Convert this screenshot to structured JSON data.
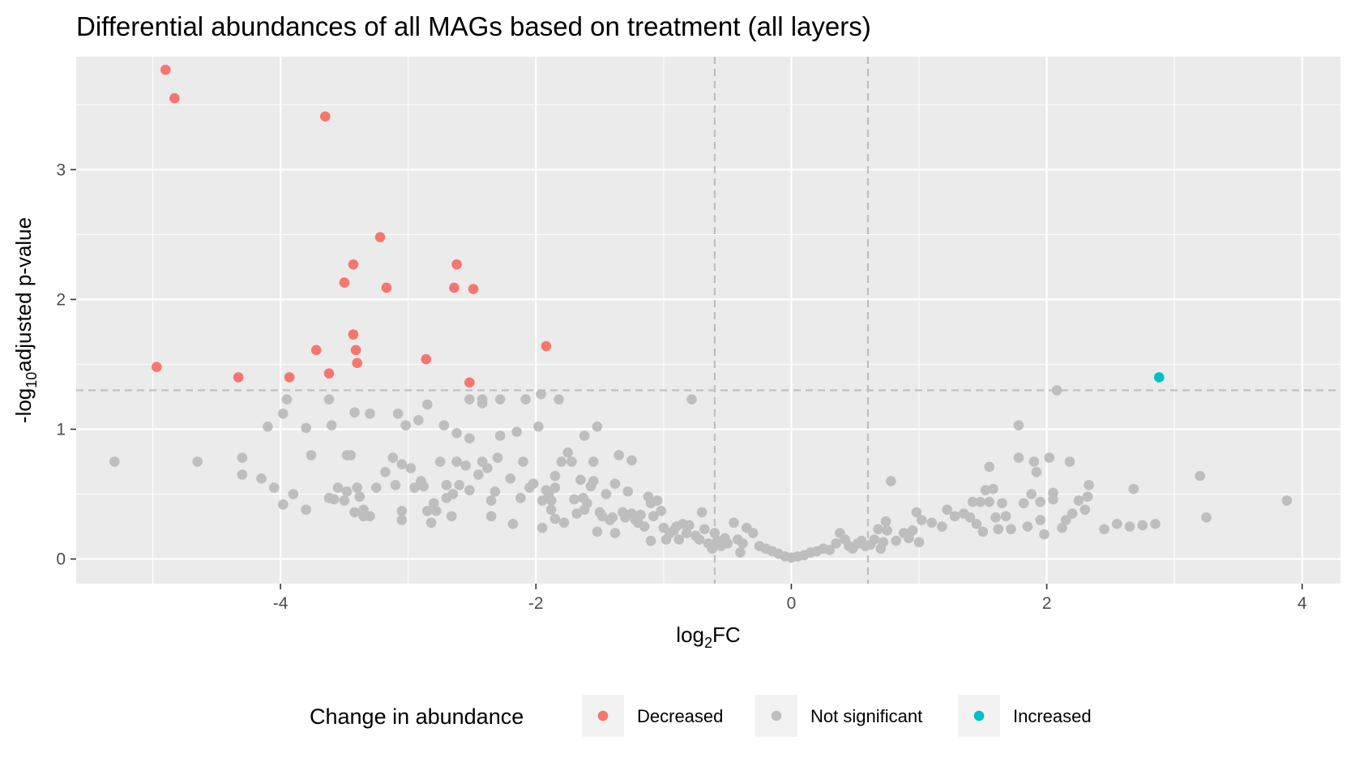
{
  "chart_data": {
    "type": "scatter",
    "title": "Differential abundances of all MAGs based on treatment (all layers)",
    "xlabel": {
      "base": "log",
      "sub": "2",
      "rest": "FC"
    },
    "ylabel": {
      "pre": "-log",
      "sub": "10",
      "rest": "adjusted p-value"
    },
    "xlim": [
      -5.6,
      4.3
    ],
    "ylim": [
      -0.19,
      3.87
    ],
    "xticks": [
      -4,
      -2,
      0,
      2,
      4
    ],
    "xtick_labels": [
      "-4",
      "-2",
      "0",
      "2",
      "4"
    ],
    "yticks": [
      0,
      1,
      2,
      3
    ],
    "ytick_labels": [
      "0",
      "1",
      "2",
      "3"
    ],
    "thresholds": {
      "x": [
        -0.6,
        0.6
      ],
      "y": 1.3
    },
    "grid": true,
    "legend": {
      "title": "Change in abundance",
      "position": "bottom",
      "entries": [
        {
          "label": "Decreased",
          "color": "#F8766D"
        },
        {
          "label": "Not significant",
          "color": "#BEBEBE"
        },
        {
          "label": "Increased",
          "color": "#00BFC4"
        }
      ]
    },
    "series": [
      {
        "name": "Decreased",
        "color": "#F8766D",
        "points": [
          [
            -4.9,
            3.77
          ],
          [
            -4.83,
            3.55
          ],
          [
            -3.65,
            3.41
          ],
          [
            -3.22,
            2.48
          ],
          [
            -3.43,
            2.27
          ],
          [
            -3.5,
            2.13
          ],
          [
            -3.17,
            2.09
          ],
          [
            -2.62,
            2.27
          ],
          [
            -2.64,
            2.09
          ],
          [
            -2.49,
            2.08
          ],
          [
            -3.43,
            1.73
          ],
          [
            -3.41,
            1.61
          ],
          [
            -3.4,
            1.51
          ],
          [
            -3.72,
            1.61
          ],
          [
            -3.62,
            1.43
          ],
          [
            -4.97,
            1.48
          ],
          [
            -4.33,
            1.4
          ],
          [
            -3.93,
            1.4
          ],
          [
            -2.86,
            1.54
          ],
          [
            -1.92,
            1.64
          ],
          [
            -2.52,
            1.36
          ]
        ]
      },
      {
        "name": "Not significant",
        "color": "#BEBEBE",
        "points": [
          [
            -5.3,
            0.75
          ],
          [
            -4.65,
            0.75
          ],
          [
            -4.3,
            0.78
          ],
          [
            -4.3,
            0.65
          ],
          [
            -4.15,
            0.62
          ],
          [
            -4.1,
            1.02
          ],
          [
            -4.05,
            0.55
          ],
          [
            -3.98,
            0.42
          ],
          [
            -3.98,
            1.12
          ],
          [
            -3.95,
            1.23
          ],
          [
            -3.9,
            0.5
          ],
          [
            -3.8,
            0.38
          ],
          [
            -3.8,
            1.01
          ],
          [
            -3.76,
            0.8
          ],
          [
            -3.62,
            1.23
          ],
          [
            -3.6,
            1.03
          ],
          [
            -3.62,
            0.47
          ],
          [
            -3.58,
            0.46
          ],
          [
            -3.55,
            0.55
          ],
          [
            -3.5,
            0.45
          ],
          [
            -3.48,
            0.8
          ],
          [
            -3.45,
            0.8
          ],
          [
            -3.48,
            0.52
          ],
          [
            -3.42,
            0.36
          ],
          [
            -3.4,
            0.55
          ],
          [
            -3.42,
            1.13
          ],
          [
            -3.38,
            0.48
          ],
          [
            -3.35,
            0.38
          ],
          [
            -3.35,
            0.33
          ],
          [
            -3.3,
            1.12
          ],
          [
            -3.3,
            0.33
          ],
          [
            -3.25,
            0.55
          ],
          [
            -3.18,
            0.67
          ],
          [
            -3.12,
            0.78
          ],
          [
            -3.1,
            0.57
          ],
          [
            -3.08,
            1.12
          ],
          [
            -3.05,
            0.73
          ],
          [
            -3.05,
            0.3
          ],
          [
            -3.05,
            0.37
          ],
          [
            -3.02,
            1.03
          ],
          [
            -2.98,
            0.7
          ],
          [
            -2.95,
            0.55
          ],
          [
            -2.92,
            1.07
          ],
          [
            -2.9,
            0.6
          ],
          [
            -2.88,
            0.56
          ],
          [
            -2.85,
            0.37
          ],
          [
            -2.85,
            1.19
          ],
          [
            -2.82,
            0.28
          ],
          [
            -2.8,
            0.43
          ],
          [
            -2.78,
            0.37
          ],
          [
            -2.75,
            0.75
          ],
          [
            -2.72,
            1.03
          ],
          [
            -2.7,
            0.47
          ],
          [
            -2.7,
            0.57
          ],
          [
            -2.66,
            0.33
          ],
          [
            -2.65,
            0.5
          ],
          [
            -2.62,
            0.97
          ],
          [
            -2.62,
            0.75
          ],
          [
            -2.6,
            0.57
          ],
          [
            -2.55,
            0.72
          ],
          [
            -2.52,
            0.53
          ],
          [
            -2.52,
            0.93
          ],
          [
            -2.52,
            1.23
          ],
          [
            -2.45,
            0.65
          ],
          [
            -2.42,
            0.75
          ],
          [
            -2.42,
            1.23
          ],
          [
            -2.42,
            1.2
          ],
          [
            -2.38,
            0.7
          ],
          [
            -2.35,
            0.45
          ],
          [
            -2.35,
            0.33
          ],
          [
            -2.32,
            0.52
          ],
          [
            -2.3,
            0.78
          ],
          [
            -2.28,
            0.95
          ],
          [
            -2.28,
            1.23
          ],
          [
            -2.2,
            0.62
          ],
          [
            -2.18,
            0.27
          ],
          [
            -2.15,
            0.98
          ],
          [
            -2.12,
            0.47
          ],
          [
            -2.1,
            0.75
          ],
          [
            -2.08,
            1.23
          ],
          [
            -2.05,
            0.55
          ],
          [
            -2.02,
            0.58
          ],
          [
            -1.98,
            1.02
          ],
          [
            -1.96,
            1.27
          ],
          [
            -1.95,
            0.45
          ],
          [
            -1.95,
            0.24
          ],
          [
            -1.92,
            0.53
          ],
          [
            -1.9,
            0.5
          ],
          [
            -1.88,
            0.45
          ],
          [
            -1.88,
            0.38
          ],
          [
            -1.85,
            0.64
          ],
          [
            -1.85,
            0.55
          ],
          [
            -1.85,
            0.31
          ],
          [
            -1.82,
            1.23
          ],
          [
            -1.8,
            0.75
          ],
          [
            -1.78,
            0.28
          ],
          [
            -1.75,
            0.82
          ],
          [
            -1.72,
            0.75
          ],
          [
            -1.7,
            0.46
          ],
          [
            -1.68,
            0.35
          ],
          [
            -1.65,
            0.61
          ],
          [
            -1.63,
            0.47
          ],
          [
            -1.62,
            0.38
          ],
          [
            -1.62,
            0.95
          ],
          [
            -1.6,
            0.43
          ],
          [
            -1.57,
            0.56
          ],
          [
            -1.55,
            0.75
          ],
          [
            -1.55,
            0.6
          ],
          [
            -1.52,
            1.02
          ],
          [
            -1.52,
            0.21
          ],
          [
            -1.5,
            0.36
          ],
          [
            -1.48,
            0.33
          ],
          [
            -1.45,
            0.5
          ],
          [
            -1.42,
            0.3
          ],
          [
            -1.4,
            0.32
          ],
          [
            -1.38,
            0.2
          ],
          [
            -1.38,
            0.58
          ],
          [
            -1.35,
            0.8
          ],
          [
            -1.32,
            0.36
          ],
          [
            -1.3,
            0.32
          ],
          [
            -1.28,
            0.52
          ],
          [
            -1.25,
            0.76
          ],
          [
            -1.25,
            0.35
          ],
          [
            -1.22,
            0.3
          ],
          [
            -1.2,
            0.28
          ],
          [
            -1.18,
            0.34
          ],
          [
            -1.15,
            0.25
          ],
          [
            -1.12,
            0.48
          ],
          [
            -1.1,
            0.43
          ],
          [
            -1.1,
            0.14
          ],
          [
            -1.08,
            0.33
          ],
          [
            -1.05,
            0.45
          ],
          [
            -1.02,
            0.37
          ],
          [
            -1.0,
            0.24
          ],
          [
            -0.98,
            0.15
          ],
          [
            -0.95,
            0.2
          ],
          [
            -0.92,
            0.22
          ],
          [
            -0.9,
            0.25
          ],
          [
            -0.88,
            0.15
          ],
          [
            -0.85,
            0.27
          ],
          [
            -0.82,
            0.2
          ],
          [
            -0.8,
            0.26
          ],
          [
            -0.78,
            1.23
          ],
          [
            -0.75,
            0.18
          ],
          [
            -0.72,
            0.15
          ],
          [
            -0.7,
            0.36
          ],
          [
            -0.68,
            0.23
          ],
          [
            -0.65,
            0.12
          ],
          [
            -0.62,
            0.08
          ],
          [
            -0.6,
            0.2
          ],
          [
            -0.58,
            0.14
          ],
          [
            -0.55,
            0.1
          ],
          [
            -0.52,
            0.16
          ],
          [
            -0.5,
            0.12
          ],
          [
            -0.45,
            0.28
          ],
          [
            -0.42,
            0.15
          ],
          [
            -0.4,
            0.05
          ],
          [
            -0.38,
            0.12
          ],
          [
            -0.35,
            0.24
          ],
          [
            -0.3,
            0.2
          ],
          [
            -0.25,
            0.1
          ],
          [
            -0.2,
            0.08
          ],
          [
            -0.15,
            0.06
          ],
          [
            -0.1,
            0.04
          ],
          [
            -0.05,
            0.02
          ],
          [
            0.0,
            0.01
          ],
          [
            0.05,
            0.02
          ],
          [
            0.1,
            0.03
          ],
          [
            0.15,
            0.05
          ],
          [
            0.2,
            0.06
          ],
          [
            0.25,
            0.08
          ],
          [
            0.3,
            0.07
          ],
          [
            0.35,
            0.12
          ],
          [
            0.38,
            0.2
          ],
          [
            0.42,
            0.15
          ],
          [
            0.45,
            0.1
          ],
          [
            0.48,
            0.08
          ],
          [
            0.52,
            0.12
          ],
          [
            0.55,
            0.14
          ],
          [
            0.58,
            0.1
          ],
          [
            0.62,
            0.11
          ],
          [
            0.65,
            0.15
          ],
          [
            0.68,
            0.23
          ],
          [
            0.7,
            0.08
          ],
          [
            0.72,
            0.13
          ],
          [
            0.74,
            0.29
          ],
          [
            0.75,
            0.22
          ],
          [
            0.78,
            0.6
          ],
          [
            0.82,
            0.14
          ],
          [
            0.88,
            0.2
          ],
          [
            0.92,
            0.16
          ],
          [
            0.95,
            0.22
          ],
          [
            0.98,
            0.36
          ],
          [
            1.0,
            0.13
          ],
          [
            1.02,
            0.3
          ],
          [
            1.1,
            0.28
          ],
          [
            1.18,
            0.25
          ],
          [
            1.22,
            0.38
          ],
          [
            1.28,
            0.33
          ],
          [
            1.35,
            0.35
          ],
          [
            1.4,
            0.32
          ],
          [
            1.42,
            0.44
          ],
          [
            1.45,
            0.27
          ],
          [
            1.48,
            0.44
          ],
          [
            1.5,
            0.21
          ],
          [
            1.52,
            0.53
          ],
          [
            1.55,
            0.71
          ],
          [
            1.55,
            0.44
          ],
          [
            1.58,
            0.54
          ],
          [
            1.6,
            0.32
          ],
          [
            1.62,
            0.23
          ],
          [
            1.65,
            0.43
          ],
          [
            1.68,
            0.33
          ],
          [
            1.72,
            0.23
          ],
          [
            1.78,
            0.78
          ],
          [
            1.78,
            1.03
          ],
          [
            1.82,
            0.43
          ],
          [
            1.85,
            0.25
          ],
          [
            1.88,
            0.5
          ],
          [
            1.9,
            0.75
          ],
          [
            1.92,
            0.67
          ],
          [
            1.95,
            0.3
          ],
          [
            1.95,
            0.44
          ],
          [
            1.98,
            0.19
          ],
          [
            2.02,
            0.78
          ],
          [
            2.05,
            0.46
          ],
          [
            2.05,
            0.51
          ],
          [
            2.08,
            1.3
          ],
          [
            2.12,
            0.24
          ],
          [
            2.15,
            0.3
          ],
          [
            2.18,
            0.75
          ],
          [
            2.2,
            0.35
          ],
          [
            2.25,
            0.45
          ],
          [
            2.3,
            0.38
          ],
          [
            2.32,
            0.48
          ],
          [
            2.33,
            0.57
          ],
          [
            2.45,
            0.23
          ],
          [
            2.55,
            0.27
          ],
          [
            2.65,
            0.25
          ],
          [
            2.68,
            0.54
          ],
          [
            2.75,
            0.26
          ],
          [
            2.85,
            0.27
          ],
          [
            3.2,
            0.64
          ],
          [
            3.25,
            0.32
          ],
          [
            3.88,
            0.45
          ]
        ]
      },
      {
        "name": "Increased",
        "color": "#00BFC4",
        "points": [
          [
            2.88,
            1.4
          ]
        ]
      }
    ]
  }
}
